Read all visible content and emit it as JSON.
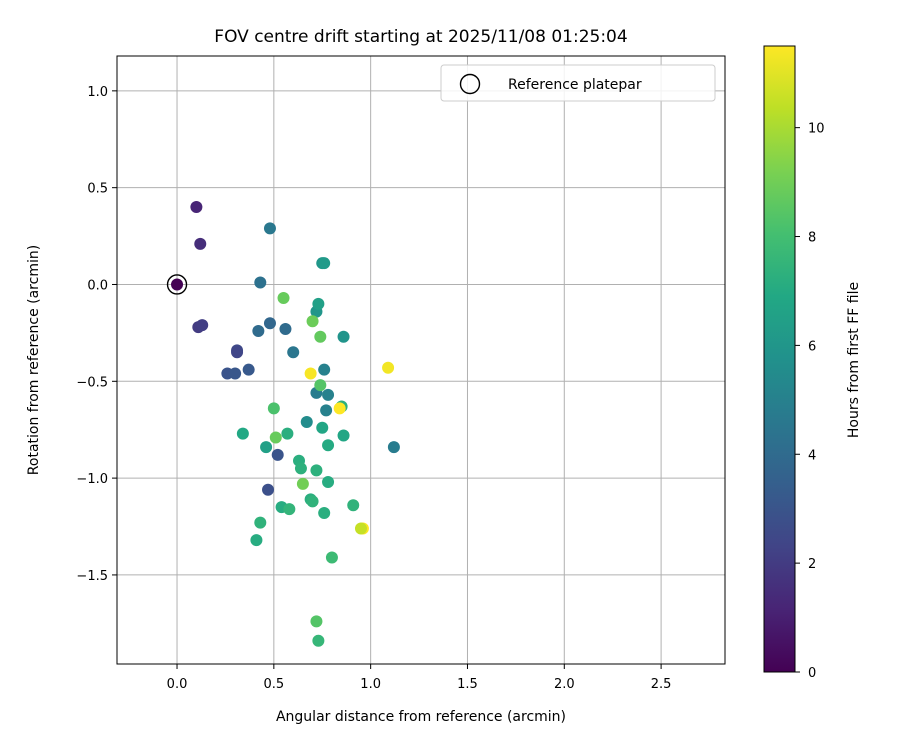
{
  "chart_data": {
    "type": "scatter",
    "title": "FOV centre drift starting at 2025/11/08 01:25:04",
    "xlabel": "Angular distance from reference (arcmin)",
    "ylabel": "Rotation from reference (arcmin)",
    "xlim": [
      -0.31,
      2.83
    ],
    "ylim": [
      -1.96,
      1.18
    ],
    "xticks": [
      0.0,
      0.5,
      1.0,
      1.5,
      2.0,
      2.5
    ],
    "xtick_labels": [
      "0.0",
      "0.5",
      "1.0",
      "1.5",
      "2.0",
      "2.5"
    ],
    "yticks": [
      1.0,
      0.5,
      0.0,
      -0.5,
      -1.0,
      -1.5
    ],
    "ytick_labels": [
      "1.0",
      "0.5",
      "0.0",
      "−0.5",
      "−1.0",
      "−1.5"
    ],
    "grid": true,
    "legend": {
      "position": "upper-right",
      "label": "Reference platepar"
    },
    "reference_point": {
      "x": 0.0,
      "y": 0.0,
      "hours": 0.0
    },
    "colorbar": {
      "label": "Hours from first FF file",
      "range": [
        0,
        11.5
      ],
      "ticks": [
        0,
        2,
        4,
        6,
        8,
        10
      ],
      "tick_labels": [
        "0",
        "2",
        "4",
        "6",
        "8",
        "10"
      ],
      "colormap": "viridis"
    },
    "points": [
      {
        "x": 0.0,
        "y": 0.0,
        "hours": 0.0
      },
      {
        "x": 0.1,
        "y": 0.4,
        "hours": 1.2
      },
      {
        "x": 0.12,
        "y": 0.21,
        "hours": 1.5
      },
      {
        "x": 0.11,
        "y": -0.22,
        "hours": 2.0
      },
      {
        "x": 0.13,
        "y": -0.21,
        "hours": 2.1
      },
      {
        "x": 0.31,
        "y": -0.34,
        "hours": 2.5
      },
      {
        "x": 0.31,
        "y": -0.35,
        "hours": 2.4
      },
      {
        "x": 0.26,
        "y": -0.46,
        "hours": 3.0
      },
      {
        "x": 0.3,
        "y": -0.46,
        "hours": 3.1
      },
      {
        "x": 0.37,
        "y": -0.44,
        "hours": 3.2
      },
      {
        "x": 0.47,
        "y": -1.06,
        "hours": 2.8
      },
      {
        "x": 0.52,
        "y": -0.88,
        "hours": 3.0
      },
      {
        "x": 0.42,
        "y": -0.24,
        "hours": 4.0
      },
      {
        "x": 0.48,
        "y": -0.2,
        "hours": 3.8
      },
      {
        "x": 0.43,
        "y": 0.01,
        "hours": 4.3
      },
      {
        "x": 0.48,
        "y": 0.29,
        "hours": 4.6
      },
      {
        "x": 0.56,
        "y": -0.23,
        "hours": 4.0
      },
      {
        "x": 0.6,
        "y": -0.35,
        "hours": 4.5
      },
      {
        "x": 0.72,
        "y": -0.56,
        "hours": 4.8
      },
      {
        "x": 0.76,
        "y": -0.44,
        "hours": 5.0
      },
      {
        "x": 0.78,
        "y": -0.57,
        "hours": 5.0
      },
      {
        "x": 0.77,
        "y": -0.65,
        "hours": 5.0
      },
      {
        "x": 0.67,
        "y": -0.71,
        "hours": 5.5
      },
      {
        "x": 0.75,
        "y": 0.11,
        "hours": 6.0
      },
      {
        "x": 0.76,
        "y": 0.11,
        "hours": 6.2
      },
      {
        "x": 0.72,
        "y": -0.14,
        "hours": 6.0
      },
      {
        "x": 0.73,
        "y": -0.1,
        "hours": 6.5
      },
      {
        "x": 0.86,
        "y": -0.27,
        "hours": 5.9
      },
      {
        "x": 1.12,
        "y": -0.84,
        "hours": 4.8
      },
      {
        "x": 0.46,
        "y": -0.84,
        "hours": 6.5
      },
      {
        "x": 0.34,
        "y": -0.77,
        "hours": 6.9
      },
      {
        "x": 0.57,
        "y": -0.77,
        "hours": 7.2
      },
      {
        "x": 0.75,
        "y": -0.74,
        "hours": 6.8
      },
      {
        "x": 0.78,
        "y": -0.83,
        "hours": 7.0
      },
      {
        "x": 0.86,
        "y": -0.78,
        "hours": 6.8
      },
      {
        "x": 0.85,
        "y": -0.63,
        "hours": 7.3
      },
      {
        "x": 0.63,
        "y": -0.91,
        "hours": 7.2
      },
      {
        "x": 0.64,
        "y": -0.95,
        "hours": 7.3
      },
      {
        "x": 0.72,
        "y": -0.96,
        "hours": 7.3
      },
      {
        "x": 0.78,
        "y": -1.02,
        "hours": 7.1
      },
      {
        "x": 0.69,
        "y": -1.11,
        "hours": 7.2
      },
      {
        "x": 0.7,
        "y": -1.12,
        "hours": 7.4
      },
      {
        "x": 0.54,
        "y": -1.15,
        "hours": 7.1
      },
      {
        "x": 0.58,
        "y": -1.16,
        "hours": 7.5
      },
      {
        "x": 0.76,
        "y": -1.18,
        "hours": 7.2
      },
      {
        "x": 0.91,
        "y": -1.14,
        "hours": 7.4
      },
      {
        "x": 0.43,
        "y": -1.23,
        "hours": 7.4
      },
      {
        "x": 0.41,
        "y": -1.32,
        "hours": 7.1
      },
      {
        "x": 0.8,
        "y": -1.41,
        "hours": 7.8
      },
      {
        "x": 0.73,
        "y": -1.84,
        "hours": 7.6
      },
      {
        "x": 0.72,
        "y": -1.74,
        "hours": 8.4
      },
      {
        "x": 0.5,
        "y": -0.64,
        "hours": 8.2
      },
      {
        "x": 0.51,
        "y": -0.79,
        "hours": 8.8
      },
      {
        "x": 0.65,
        "y": -1.03,
        "hours": 9.0
      },
      {
        "x": 0.55,
        "y": -0.07,
        "hours": 8.8
      },
      {
        "x": 0.7,
        "y": -0.19,
        "hours": 8.9
      },
      {
        "x": 0.74,
        "y": -0.27,
        "hours": 8.7
      },
      {
        "x": 0.74,
        "y": -0.52,
        "hours": 8.4
      },
      {
        "x": 0.69,
        "y": -0.46,
        "hours": 11.4
      },
      {
        "x": 1.09,
        "y": -0.43,
        "hours": 11.3
      },
      {
        "x": 0.84,
        "y": -0.64,
        "hours": 11.5
      },
      {
        "x": 0.96,
        "y": -1.26,
        "hours": 11.5
      },
      {
        "x": 0.95,
        "y": -1.26,
        "hours": 10.5
      }
    ]
  }
}
